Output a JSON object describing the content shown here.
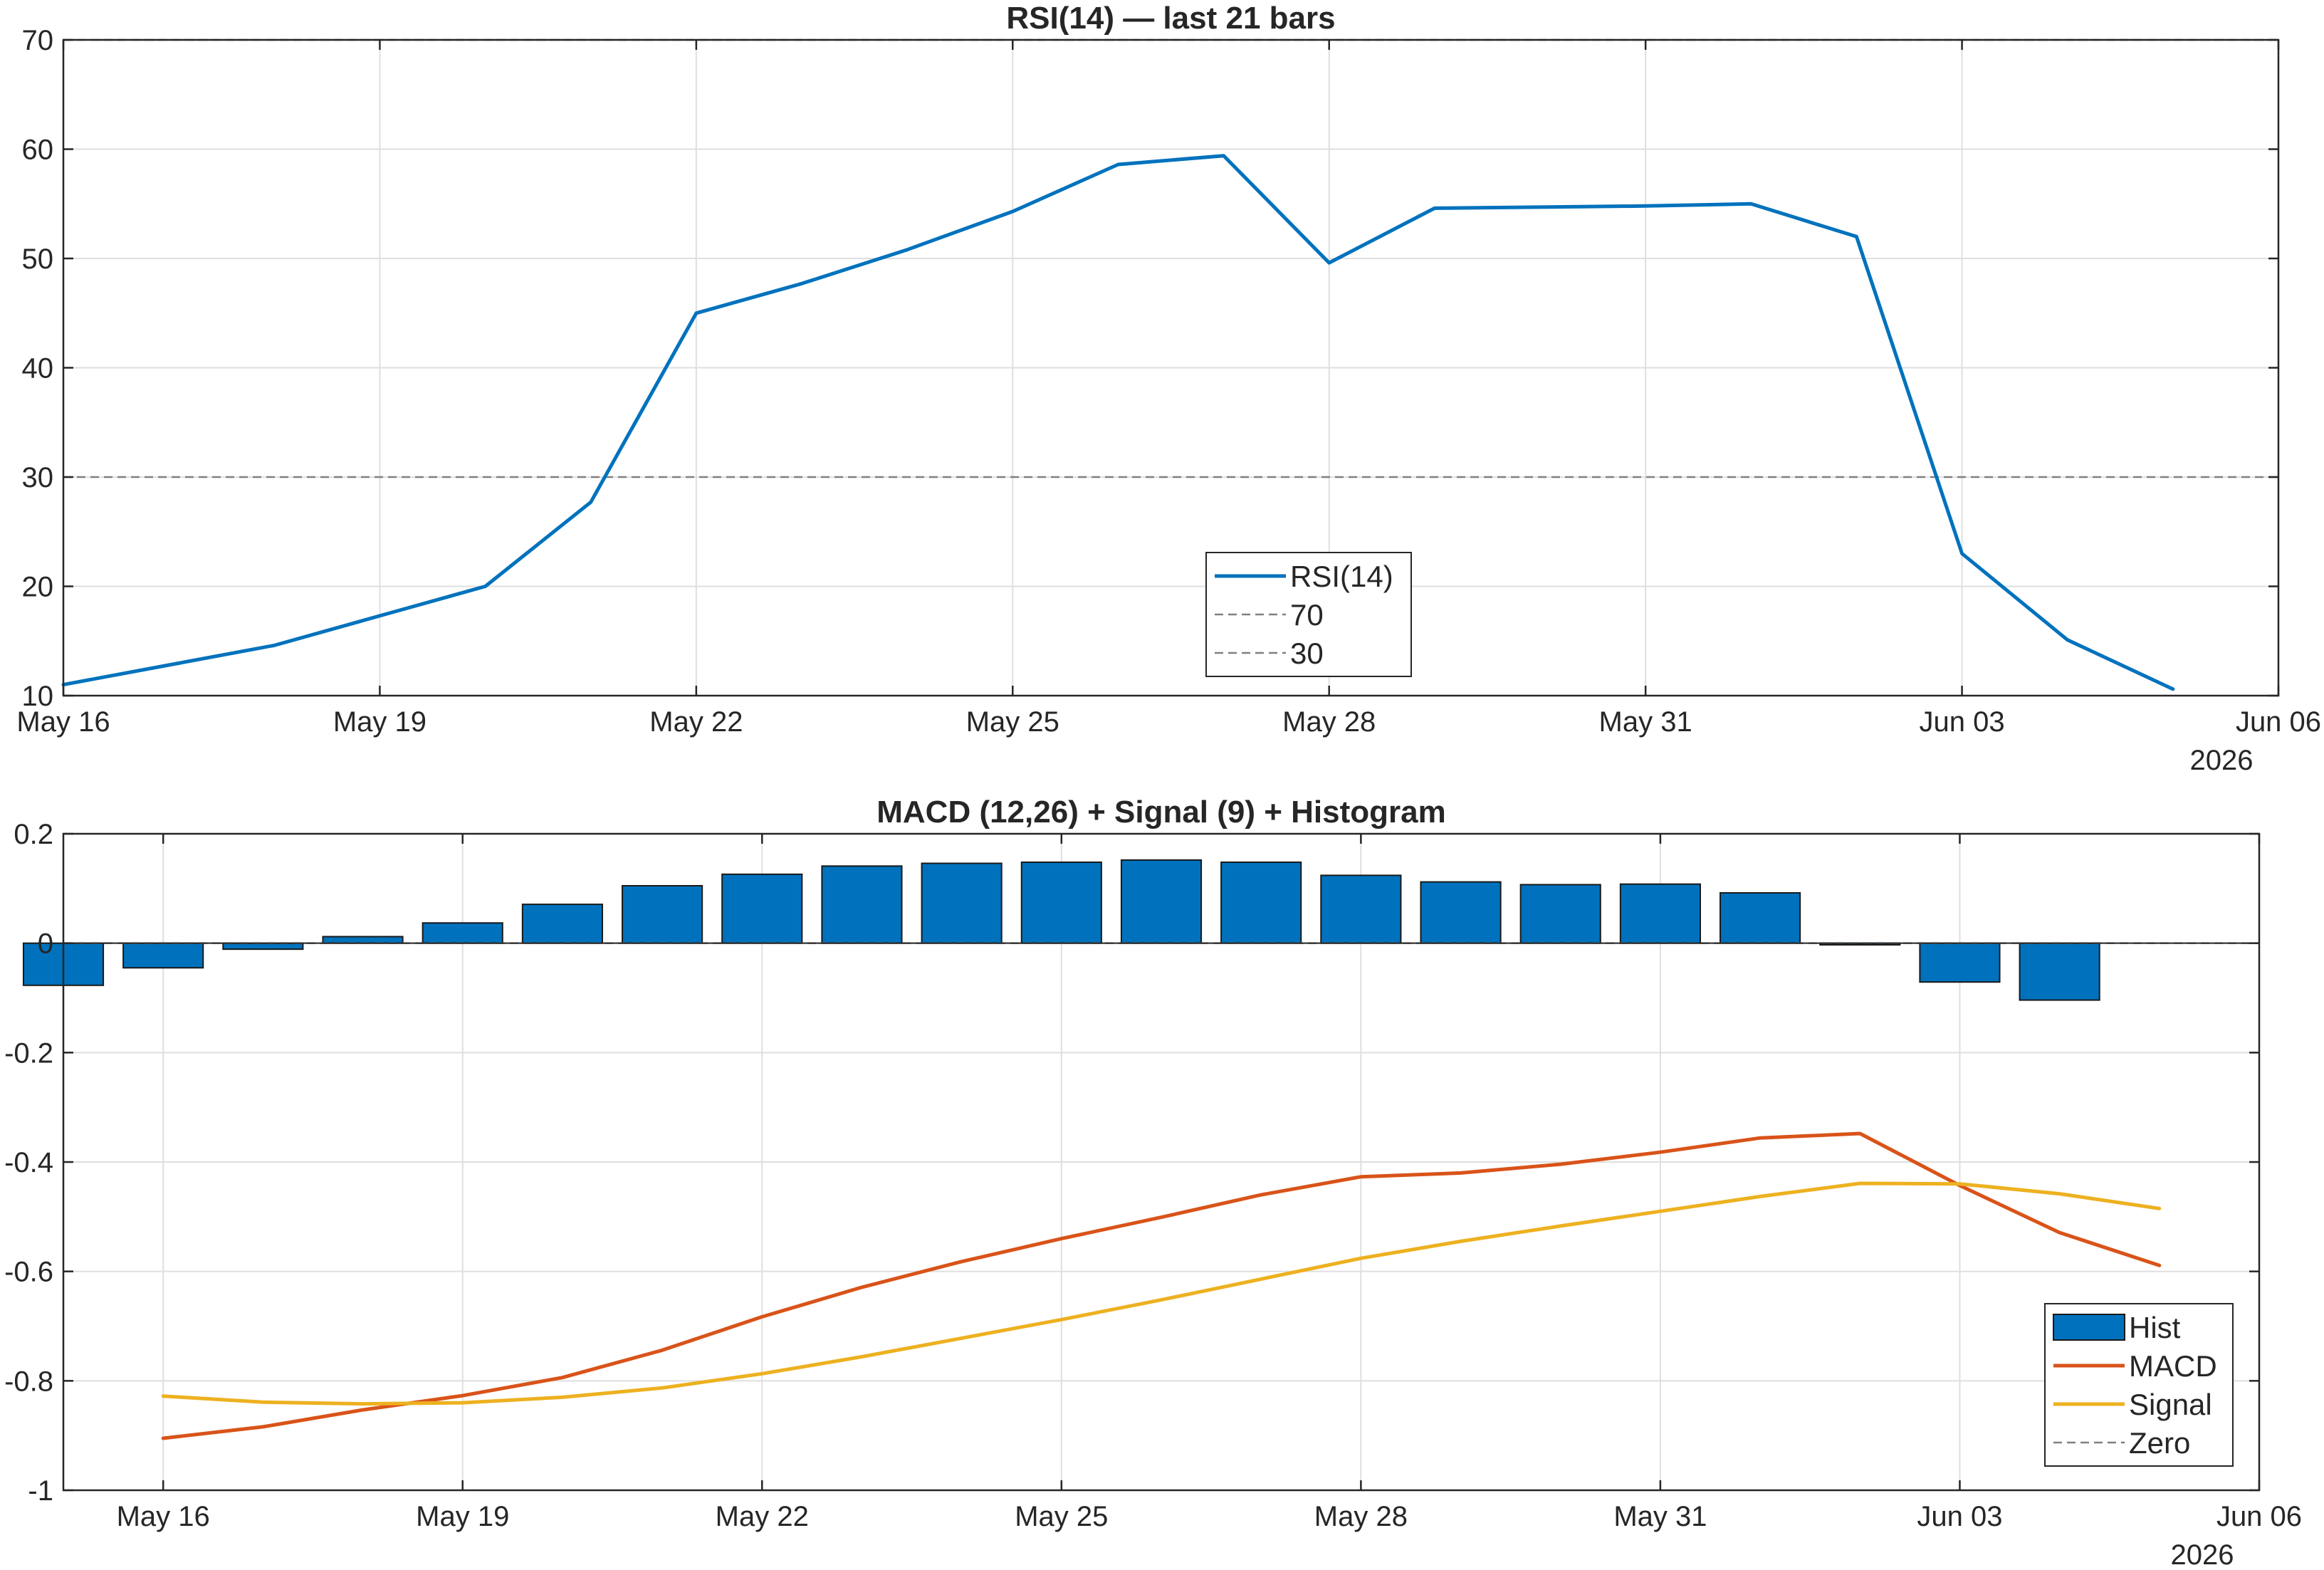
{
  "chart_data": [
    {
      "type": "line",
      "title": "RSI(14) — last 21 bars",
      "xlabel": "",
      "ylabel": "",
      "xlim": [
        "2026-05-16",
        "2026-06-06"
      ],
      "ylim": [
        10,
        70
      ],
      "x_ticks": [
        "May 16",
        "May 19",
        "May 22",
        "May 25",
        "May 28",
        "May 31",
        "Jun 03",
        "Jun 06"
      ],
      "x_tick_dates": [
        "2026-05-16",
        "2026-05-19",
        "2026-05-22",
        "2026-05-25",
        "2026-05-28",
        "2026-05-31",
        "2026-06-03",
        "2026-06-06"
      ],
      "x_year_label": "2026",
      "y_ticks": [
        10,
        20,
        30,
        40,
        50,
        60,
        70
      ],
      "grid": true,
      "legend_location": "bottom-center",
      "x": [
        "2026-05-16",
        "2026-05-17",
        "2026-05-18",
        "2026-05-19",
        "2026-05-20",
        "2026-05-21",
        "2026-05-22",
        "2026-05-23",
        "2026-05-24",
        "2026-05-25",
        "2026-05-26",
        "2026-05-27",
        "2026-05-28",
        "2026-05-29",
        "2026-05-30",
        "2026-05-31",
        "2026-06-01",
        "2026-06-02",
        "2026-06-03",
        "2026-06-04",
        "2026-06-05"
      ],
      "series": [
        {
          "name": "RSI(14)",
          "color": "#0072BD",
          "style": "solid",
          "values": [
            11.0,
            12.8,
            14.6,
            17.3,
            20.0,
            27.7,
            45.0,
            47.7,
            50.8,
            54.3,
            58.6,
            59.4,
            49.6,
            54.6,
            54.7,
            54.8,
            55.0,
            52.0,
            23.0,
            15.1,
            10.6
          ]
        },
        {
          "name": "70",
          "color": "#808080",
          "style": "dashed",
          "constant": 70
        },
        {
          "name": "30",
          "color": "#808080",
          "style": "dashed",
          "constant": 30
        }
      ]
    },
    {
      "type": "bar",
      "title": "MACD (12,26) + Signal (9) + Histogram",
      "xlabel": "",
      "ylabel": "",
      "xlim": [
        "2026-05-15",
        "2026-06-06"
      ],
      "ylim": [
        -1,
        0.2
      ],
      "x_ticks": [
        "May 16",
        "May 19",
        "May 22",
        "May 25",
        "May 28",
        "May 31",
        "Jun 03",
        "Jun 06"
      ],
      "x_tick_dates": [
        "2026-05-16",
        "2026-05-19",
        "2026-05-22",
        "2026-05-25",
        "2026-05-28",
        "2026-05-31",
        "2026-06-03",
        "2026-06-06"
      ],
      "x_year_label": "2026",
      "y_ticks": [
        -1,
        -0.8,
        -0.6,
        -0.4,
        -0.2,
        0,
        0.2
      ],
      "y_tick_labels": [
        "-1",
        "-0.8",
        "-0.6",
        "-0.4",
        "-0.2",
        "0",
        "0.2"
      ],
      "grid": true,
      "legend_location": "bottom-right",
      "x": [
        "2026-05-15",
        "2026-05-16",
        "2026-05-17",
        "2026-05-18",
        "2026-05-19",
        "2026-05-20",
        "2026-05-21",
        "2026-05-22",
        "2026-05-23",
        "2026-05-24",
        "2026-05-25",
        "2026-05-26",
        "2026-05-27",
        "2026-05-28",
        "2026-05-29",
        "2026-05-30",
        "2026-05-31",
        "2026-06-01",
        "2026-06-02",
        "2026-06-03",
        "2026-06-04",
        "2026-06-05"
      ],
      "series": [
        {
          "name": "Hist",
          "kind": "bar",
          "color": "#0072BD",
          "x": [
            "2026-05-15",
            "2026-05-16",
            "2026-05-17",
            "2026-05-18",
            "2026-05-19",
            "2026-05-20",
            "2026-05-21",
            "2026-05-22",
            "2026-05-23",
            "2026-05-24",
            "2026-05-25",
            "2026-05-26",
            "2026-05-27",
            "2026-05-28",
            "2026-05-29",
            "2026-05-30",
            "2026-05-31",
            "2026-06-01",
            "2026-06-02",
            "2026-06-03",
            "2026-06-04"
          ],
          "values": [
            -0.077,
            -0.045,
            -0.011,
            0.012,
            0.037,
            0.071,
            0.105,
            0.126,
            0.141,
            0.146,
            0.148,
            0.152,
            0.148,
            0.124,
            0.112,
            0.107,
            0.108,
            0.092,
            -0.003,
            -0.071,
            -0.104
          ]
        },
        {
          "name": "MACD",
          "kind": "line",
          "color": "#D95319",
          "x": [
            "2026-05-16",
            "2026-05-17",
            "2026-05-18",
            "2026-05-19",
            "2026-05-20",
            "2026-05-21",
            "2026-05-22",
            "2026-05-23",
            "2026-05-24",
            "2026-05-25",
            "2026-05-26",
            "2026-05-27",
            "2026-05-28",
            "2026-05-29",
            "2026-05-30",
            "2026-05-31",
            "2026-06-01",
            "2026-06-02",
            "2026-06-03",
            "2026-06-04",
            "2026-06-05"
          ],
          "values": [
            -0.905,
            -0.884,
            -0.853,
            -0.827,
            -0.794,
            -0.744,
            -0.683,
            -0.629,
            -0.582,
            -0.54,
            -0.501,
            -0.46,
            -0.427,
            -0.42,
            -0.404,
            -0.382,
            -0.356,
            -0.348,
            -0.443,
            -0.529,
            -0.589
          ]
        },
        {
          "name": "Signal",
          "kind": "line",
          "color": "#EDB120",
          "x": [
            "2026-05-16",
            "2026-05-17",
            "2026-05-18",
            "2026-05-19",
            "2026-05-20",
            "2026-05-21",
            "2026-05-22",
            "2026-05-23",
            "2026-05-24",
            "2026-05-25",
            "2026-05-26",
            "2026-05-27",
            "2026-05-28",
            "2026-05-29",
            "2026-05-30",
            "2026-05-31",
            "2026-06-01",
            "2026-06-02",
            "2026-06-03",
            "2026-06-04",
            "2026-06-05"
          ],
          "values": [
            -0.828,
            -0.839,
            -0.842,
            -0.84,
            -0.83,
            -0.813,
            -0.787,
            -0.756,
            -0.722,
            -0.688,
            -0.652,
            -0.614,
            -0.576,
            -0.545,
            -0.517,
            -0.49,
            -0.463,
            -0.439,
            -0.44,
            -0.458,
            -0.485
          ]
        },
        {
          "name": "Zero",
          "kind": "hline",
          "color": "#808080",
          "style": "dashed",
          "constant": 0
        }
      ]
    }
  ]
}
